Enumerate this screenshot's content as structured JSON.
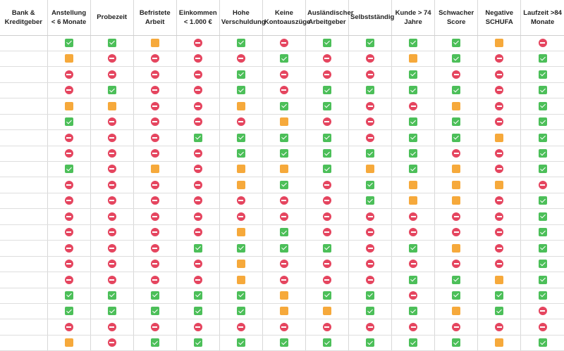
{
  "table": {
    "headers": [
      "Bank & Kreditgeber",
      "Anstellung < 6 Monate",
      "Probezeit",
      "Befristete Arbeit",
      "Einkommen < 1.000 €",
      "Hohe Verschuldung",
      "Keine Kontoauszüge",
      "Ausländischer Arbeitgeber",
      "Selbstständig",
      "Kunde > 74 Jahre",
      "Schwacher Score",
      "Negative SCHUFA",
      "Laufzeit >84 Monate"
    ],
    "status_legend": {
      "yes": "check-icon",
      "no": "minus-icon",
      "partial": "partial-icon"
    },
    "colors": {
      "yes": "#4cbf59",
      "no": "#e5455f",
      "partial": "#f6a93b"
    },
    "rows": [
      {
        "bank": "",
        "status": [
          "yes",
          "yes",
          "partial",
          "no",
          "yes",
          "no",
          "yes",
          "yes",
          "yes",
          "yes",
          "partial",
          "no"
        ]
      },
      {
        "bank": "",
        "status": [
          "partial",
          "no",
          "no",
          "no",
          "no",
          "yes",
          "no",
          "no",
          "partial",
          "yes",
          "no",
          "yes"
        ]
      },
      {
        "bank": "",
        "status": [
          "no",
          "no",
          "no",
          "no",
          "yes",
          "no",
          "no",
          "no",
          "yes",
          "no",
          "no",
          "yes"
        ]
      },
      {
        "bank": "",
        "status": [
          "no",
          "yes",
          "no",
          "no",
          "yes",
          "no",
          "yes",
          "yes",
          "yes",
          "yes",
          "no",
          "yes"
        ]
      },
      {
        "bank": "",
        "status": [
          "partial",
          "partial",
          "no",
          "no",
          "partial",
          "yes",
          "yes",
          "no",
          "no",
          "partial",
          "no",
          "yes"
        ]
      },
      {
        "bank": "",
        "status": [
          "yes",
          "no",
          "no",
          "no",
          "no",
          "partial",
          "no",
          "no",
          "yes",
          "yes",
          "no",
          "yes"
        ]
      },
      {
        "bank": "",
        "status": [
          "no",
          "no",
          "no",
          "yes",
          "yes",
          "yes",
          "yes",
          "no",
          "yes",
          "yes",
          "partial",
          "yes"
        ]
      },
      {
        "bank": "",
        "status": [
          "no",
          "no",
          "no",
          "no",
          "yes",
          "yes",
          "yes",
          "yes",
          "yes",
          "no",
          "no",
          "yes"
        ]
      },
      {
        "bank": "",
        "status": [
          "yes",
          "no",
          "partial",
          "no",
          "partial",
          "partial",
          "yes",
          "partial",
          "yes",
          "partial",
          "no",
          "yes"
        ]
      },
      {
        "bank": "",
        "status": [
          "no",
          "no",
          "no",
          "no",
          "partial",
          "yes",
          "no",
          "yes",
          "partial",
          "partial",
          "partial",
          "no"
        ]
      },
      {
        "bank": "",
        "status": [
          "no",
          "no",
          "no",
          "no",
          "no",
          "no",
          "no",
          "yes",
          "partial",
          "partial",
          "no",
          "yes"
        ]
      },
      {
        "bank": "",
        "status": [
          "no",
          "no",
          "no",
          "no",
          "no",
          "no",
          "no",
          "no",
          "no",
          "no",
          "no",
          "yes"
        ]
      },
      {
        "bank": "",
        "status": [
          "no",
          "no",
          "no",
          "no",
          "partial",
          "yes",
          "no",
          "no",
          "no",
          "no",
          "no",
          "yes"
        ]
      },
      {
        "bank": "",
        "status": [
          "no",
          "no",
          "no",
          "yes",
          "yes",
          "yes",
          "yes",
          "no",
          "yes",
          "partial",
          "no",
          "yes"
        ]
      },
      {
        "bank": "",
        "status": [
          "no",
          "no",
          "no",
          "no",
          "partial",
          "no",
          "no",
          "no",
          "no",
          "no",
          "no",
          "yes"
        ]
      },
      {
        "bank": "",
        "status": [
          "no",
          "no",
          "no",
          "no",
          "partial",
          "no",
          "no",
          "no",
          "yes",
          "yes",
          "partial",
          "yes"
        ]
      },
      {
        "bank": "",
        "status": [
          "yes",
          "yes",
          "yes",
          "yes",
          "yes",
          "partial",
          "yes",
          "yes",
          "no",
          "yes",
          "yes",
          "yes"
        ]
      },
      {
        "bank": "",
        "status": [
          "yes",
          "yes",
          "yes",
          "yes",
          "yes",
          "partial",
          "partial",
          "yes",
          "yes",
          "partial",
          "yes",
          "no"
        ]
      },
      {
        "bank": "",
        "status": [
          "no",
          "no",
          "no",
          "no",
          "no",
          "no",
          "no",
          "no",
          "no",
          "no",
          "no",
          "no"
        ]
      },
      {
        "bank": "",
        "status": [
          "partial",
          "no",
          "yes",
          "yes",
          "yes",
          "yes",
          "yes",
          "yes",
          "yes",
          "yes",
          "partial",
          "yes"
        ]
      }
    ]
  }
}
